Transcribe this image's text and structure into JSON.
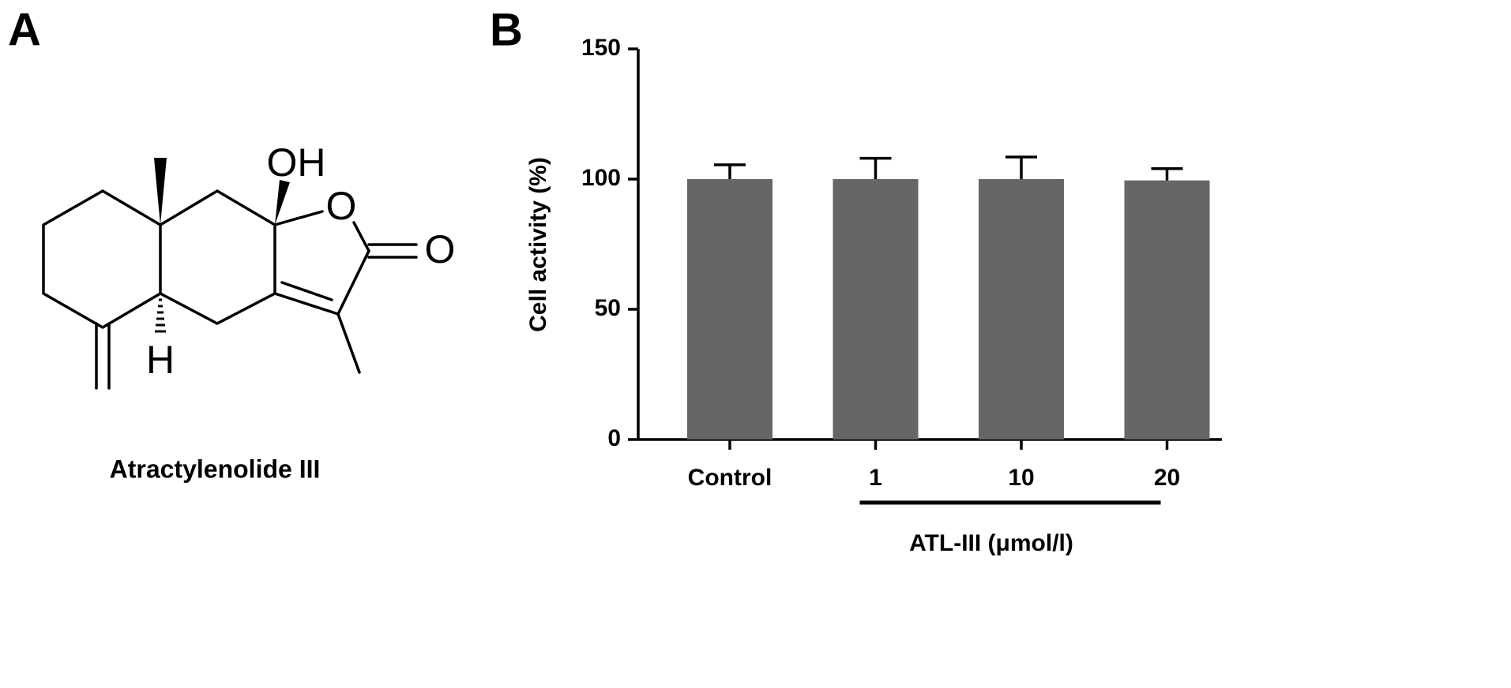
{
  "panel_a": {
    "label": "A",
    "atoms": [
      "OH",
      "O",
      "O",
      "H"
    ],
    "caption": "Atractylenolide III"
  },
  "chart_data": {
    "type": "bar",
    "panel_label": "B",
    "ylabel": "Cell activity (%)",
    "categories": [
      "Control",
      "1",
      "10",
      "20"
    ],
    "values": [
      100,
      100,
      100,
      99.5
    ],
    "errors": [
      5.5,
      8,
      8.5,
      4.5
    ],
    "group_label": "ATL-III (μmol/l)",
    "color": "#666666",
    "ylim": [
      0,
      150
    ],
    "yticks": [
      0,
      50,
      100,
      150
    ]
  }
}
